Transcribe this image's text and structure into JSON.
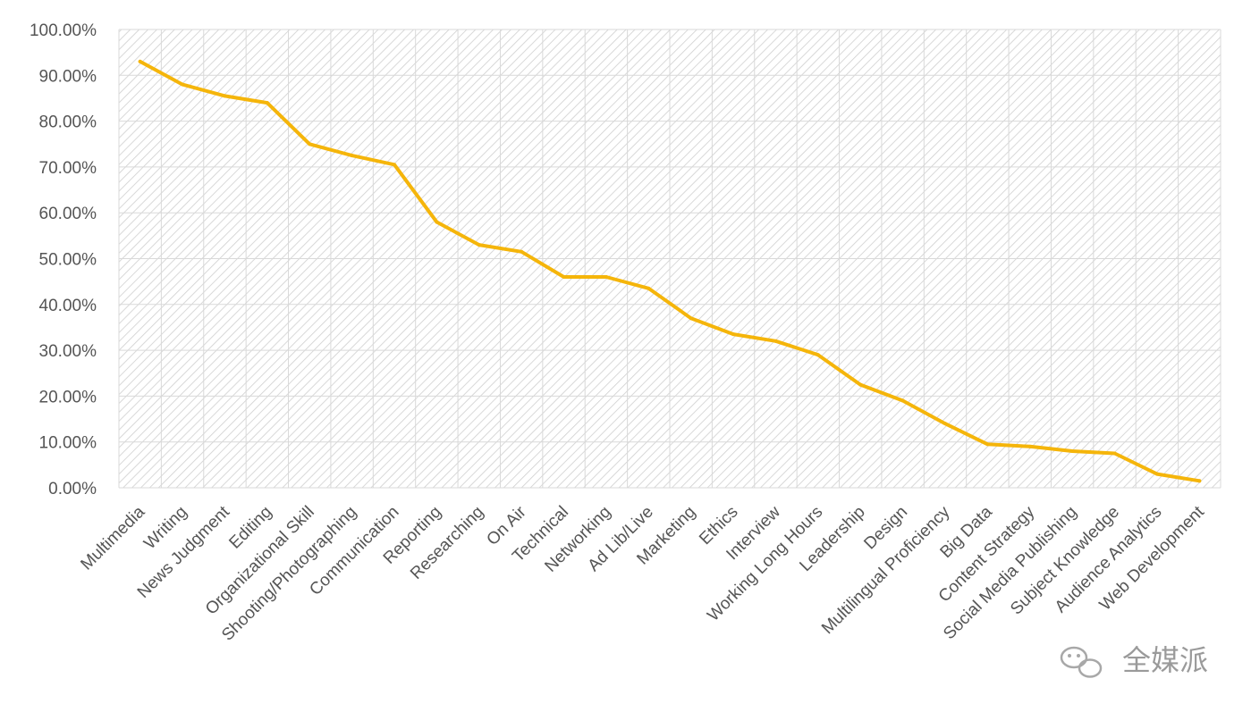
{
  "chart_data": {
    "type": "line",
    "categories": [
      "Multimedia",
      "Writing",
      "News Judgment",
      "Editing",
      "Organizational Skill",
      "Shooting/Photographing",
      "Communication",
      "Reporting",
      "Researching",
      "On Air",
      "Technical",
      "Networking",
      "Ad Lib/Live",
      "Marketing",
      "Ethics",
      "Interview",
      "Working Long Hours",
      "Leadership",
      "Design",
      "Multilingual Proficiency",
      "Big Data",
      "Content Strategy",
      "Social Media Publishing",
      "Subject Knowledge",
      "Audience Analytics",
      "Web Development"
    ],
    "series": [
      {
        "values": [
          93,
          88,
          85.5,
          84,
          75,
          72.5,
          70.5,
          58,
          53,
          51.5,
          46,
          46,
          43.5,
          37,
          33.5,
          32,
          29,
          22.5,
          19,
          14,
          9.5,
          9,
          8,
          7.5,
          3,
          1.5
        ]
      }
    ],
    "ylim": [
      0,
      100
    ],
    "yticks": [
      "0.00%",
      "10.00%",
      "20.00%",
      "30.00%",
      "40.00%",
      "50.00%",
      "60.00%",
      "70.00%",
      "80.00%",
      "90.00%",
      "100.00%"
    ],
    "line_color": "#f5b50a",
    "grid": true,
    "plot_background": "hatched"
  },
  "watermark": {
    "text": "全媒派",
    "icon": "wechat-icon"
  }
}
